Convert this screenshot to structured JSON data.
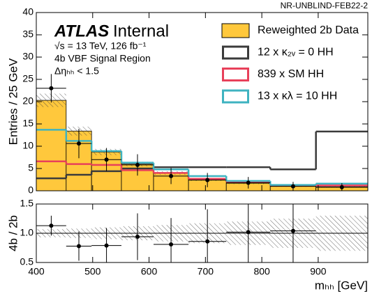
{
  "chart_data": {
    "type": "histogram",
    "corner_label": "NR-UNBLIND-FEB22-2",
    "experiment": "ATLAS",
    "status": "Internal",
    "info": [
      "√s = 13 TeV, 126 fb⁻¹",
      "4b VBF Signal Region",
      "Δηₕₕ < 1.5"
    ],
    "ylabel": "Entries / 25 GeV",
    "xlabel": "mₕₕ [GeV]",
    "bins": [
      400,
      453,
      498,
      551,
      608,
      670,
      737,
      815,
      896,
      988
    ],
    "xlim": [
      400,
      988
    ],
    "xticks": [
      400,
      500,
      600,
      700,
      800,
      900
    ],
    "ylim": [
      0,
      40
    ],
    "yticks": [
      0,
      5,
      10,
      15,
      20,
      25,
      30,
      35,
      40
    ],
    "legend": "upper right",
    "series": [
      {
        "name": "Reweighted 2b Data",
        "color": "#ffc83c",
        "values": [
          20.3,
          13.4,
          8.7,
          6.0,
          4.0,
          2.5,
          1.7,
          1.1,
          0.9
        ],
        "errors": [
          1.5,
          1.0,
          0.7,
          0.5,
          0.4,
          0.3,
          0.2,
          0.2,
          0.2
        ]
      },
      {
        "name": "12 x κ₂ᵥ = 0 HH",
        "color": "#3b3b3b",
        "values": [
          2.8,
          3.6,
          4.4,
          5.0,
          5.3,
          5.3,
          5.3,
          4.8,
          13.3
        ]
      },
      {
        "name": "839 x SM HH",
        "color": "#e8405a",
        "values": [
          6.6,
          6.0,
          5.8,
          4.6,
          4.0,
          2.7,
          2.0,
          1.2,
          1.2
        ]
      },
      {
        "name": "13 x κλ = 10 HH",
        "color": "#3fb3c0",
        "values": [
          13.7,
          11.2,
          8.9,
          6.3,
          4.8,
          3.3,
          2.2,
          1.3,
          1.6
        ]
      }
    ],
    "data": {
      "values": [
        23,
        10.6,
        7,
        5.8,
        3.3,
        2.4,
        1.8,
        1.0,
        0.8
      ],
      "errors": [
        3.2,
        3.3,
        2.6,
        2.4,
        1.8,
        1.6,
        1.3,
        1.0,
        0.9
      ]
    },
    "ratio": {
      "ylabel": "4b / 2b",
      "ylim": [
        0.5,
        1.5
      ],
      "yticks": [
        {
          "value": 0.5,
          "label": "0.5"
        },
        {
          "value": 1.0,
          "label": "1.0"
        },
        {
          "value": 1.5,
          "label": "1.5"
        }
      ],
      "values": [
        1.13,
        0.78,
        0.79,
        0.94,
        0.81,
        0.86,
        1.02,
        1.04,
        null
      ],
      "errors": [
        0.17,
        0.25,
        0.3,
        0.4,
        0.45,
        0.55,
        0.7,
        0.9,
        null
      ],
      "band": [
        0.07,
        0.08,
        0.1,
        0.12,
        0.14,
        0.17,
        0.2,
        0.25,
        0.3
      ]
    }
  }
}
